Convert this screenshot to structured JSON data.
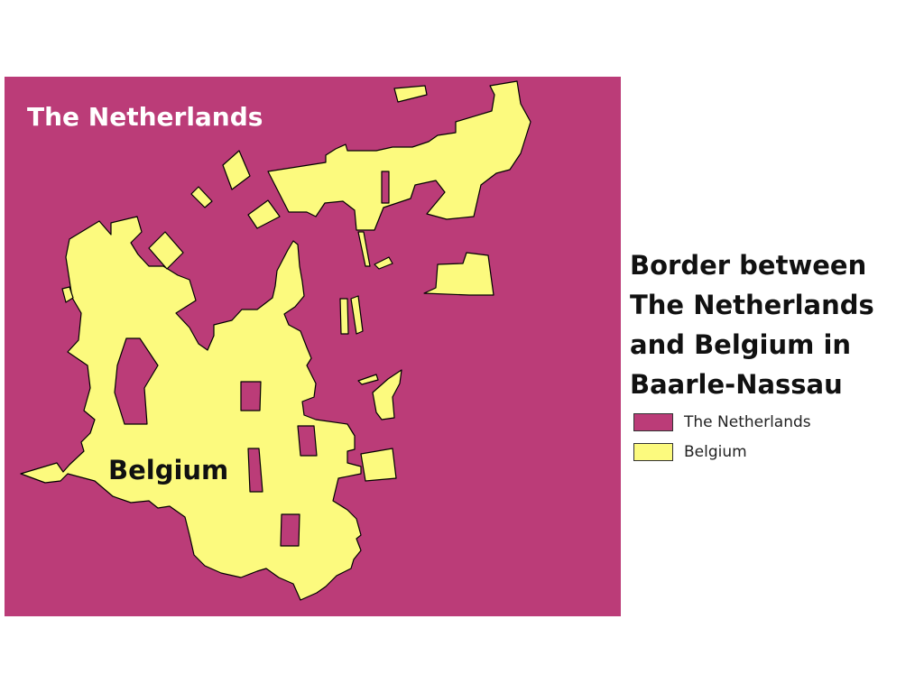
{
  "title_lines": [
    "Border between",
    "The Netherlands",
    "and Belgium in",
    "Baarle-Nassau"
  ],
  "map": {
    "netherlands_label": "The Netherlands",
    "belgium_label": "Belgium"
  },
  "legend": [
    {
      "label": "The Netherlands",
      "color": "#bb3c78"
    },
    {
      "label": "Belgium",
      "color": "#fcfa7e"
    }
  ],
  "colors": {
    "netherlands": "#bb3c78",
    "belgium": "#fcfa7e",
    "border": "#000000"
  }
}
